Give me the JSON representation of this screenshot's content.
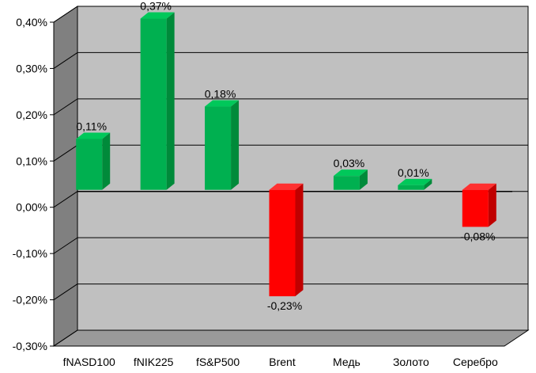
{
  "chart_data": {
    "type": "bar",
    "title": "",
    "xlabel": "",
    "ylabel": "",
    "categories": [
      "fNASD100",
      "fNIK225",
      "fS&P500",
      "Brent",
      "Медь",
      "Золото",
      "Серебро"
    ],
    "values": [
      0.11,
      0.37,
      0.18,
      -0.23,
      0.03,
      0.01,
      -0.08
    ],
    "data_labels": [
      "0,11%",
      "0,37%",
      "0,18%",
      "-0,23%",
      "0,03%",
      "0,01%",
      "-0,08%"
    ],
    "ylim": [
      -0.3,
      0.4
    ],
    "yticks": [
      0.4,
      0.3,
      0.2,
      0.1,
      0.0,
      -0.1,
      -0.2,
      -0.3
    ],
    "ytick_labels": [
      "0,40%",
      "0,30%",
      "0,20%",
      "0,10%",
      "0,00%",
      "-0,10%",
      "-0,20%",
      "-0,30%"
    ],
    "grid": true,
    "style": "3d-column",
    "colors": {
      "positive": "#00b050",
      "positive_side": "#008a3a",
      "positive_top": "#00c85a",
      "negative": "#ff0000",
      "negative_side": "#c00000",
      "negative_top": "#ff3030",
      "wall": "#c0c0c0",
      "side_wall": "#808080",
      "floor": "#9a9a9a"
    }
  }
}
